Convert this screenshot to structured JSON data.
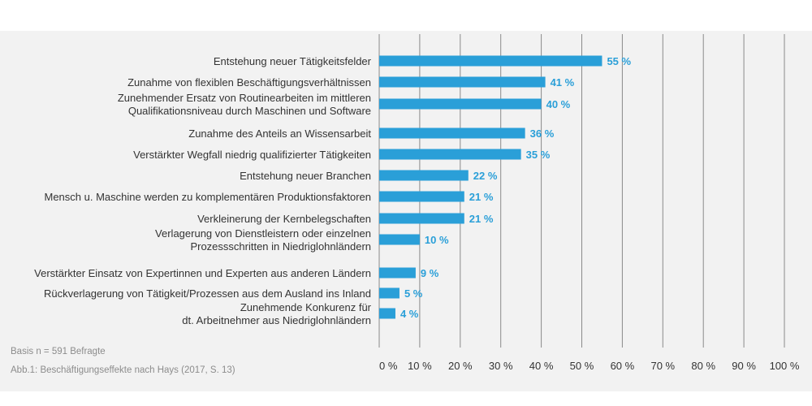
{
  "colors": {
    "bar": "#2a9fd8",
    "value_label": "#2a9fd8",
    "grid": "#8a8a8a",
    "background": "#f2f2f2"
  },
  "footnotes": {
    "basis": "Basis n = 591 Befragte",
    "caption": "Abb.1: Beschäftigungseffekte nach Hays (2017, S. 13)"
  },
  "chart_data": {
    "type": "bar",
    "orientation": "horizontal",
    "categories": [
      [
        "Entstehung neuer Tätigkeitsfelder"
      ],
      [
        "Zunahme von flexiblen Beschäftigungsverhältnissen"
      ],
      [
        "Zunehmender Ersatz von Routinearbeiten im mittleren",
        "Qualifikationsniveau durch Maschinen und Software"
      ],
      [
        "Zunahme des Anteils an Wissensarbeit"
      ],
      [
        "Verstärkter Wegfall niedrig qualifizierter Tätigkeiten"
      ],
      [
        "Entstehung neuer Branchen"
      ],
      [
        "Mensch u. Maschine werden zu komplementären Produktionsfaktoren"
      ],
      [
        "Verkleinerung der Kernbelegschaften"
      ],
      [
        "Verlagerung von Dienstleistern oder einzelnen",
        "Prozessschritten in Niedriglohnländern"
      ],
      [
        "Verstärkter Einsatz von Expertinnen und Experten aus anderen Ländern"
      ],
      [
        "Rückverlagerung von Tätigkeit/Prozessen aus dem Ausland ins Inland"
      ],
      [
        "Zunehmende Konkurenz für",
        "dt. Arbeitnehmer aus Niedriglohnländern"
      ]
    ],
    "values": [
      55,
      41,
      40,
      36,
      35,
      22,
      21,
      21,
      10,
      9,
      5,
      4
    ],
    "value_labels": [
      "55 %",
      "41 %",
      "40 %",
      "36 %",
      "35 %",
      "22 %",
      "21 %",
      "21 %",
      "10 %",
      "9 %",
      "5 %",
      "4 %"
    ],
    "xlim": [
      0,
      100
    ],
    "x_ticks": [
      0,
      10,
      20,
      30,
      40,
      50,
      60,
      70,
      80,
      90,
      100
    ],
    "x_tick_labels": [
      "0 %",
      "10 %",
      "20 %",
      "30 %",
      "40 %",
      "50 %",
      "60 %",
      "70 %",
      "80 %",
      "90 %",
      "100 %"
    ],
    "grid": "vertical",
    "legend": "none"
  }
}
